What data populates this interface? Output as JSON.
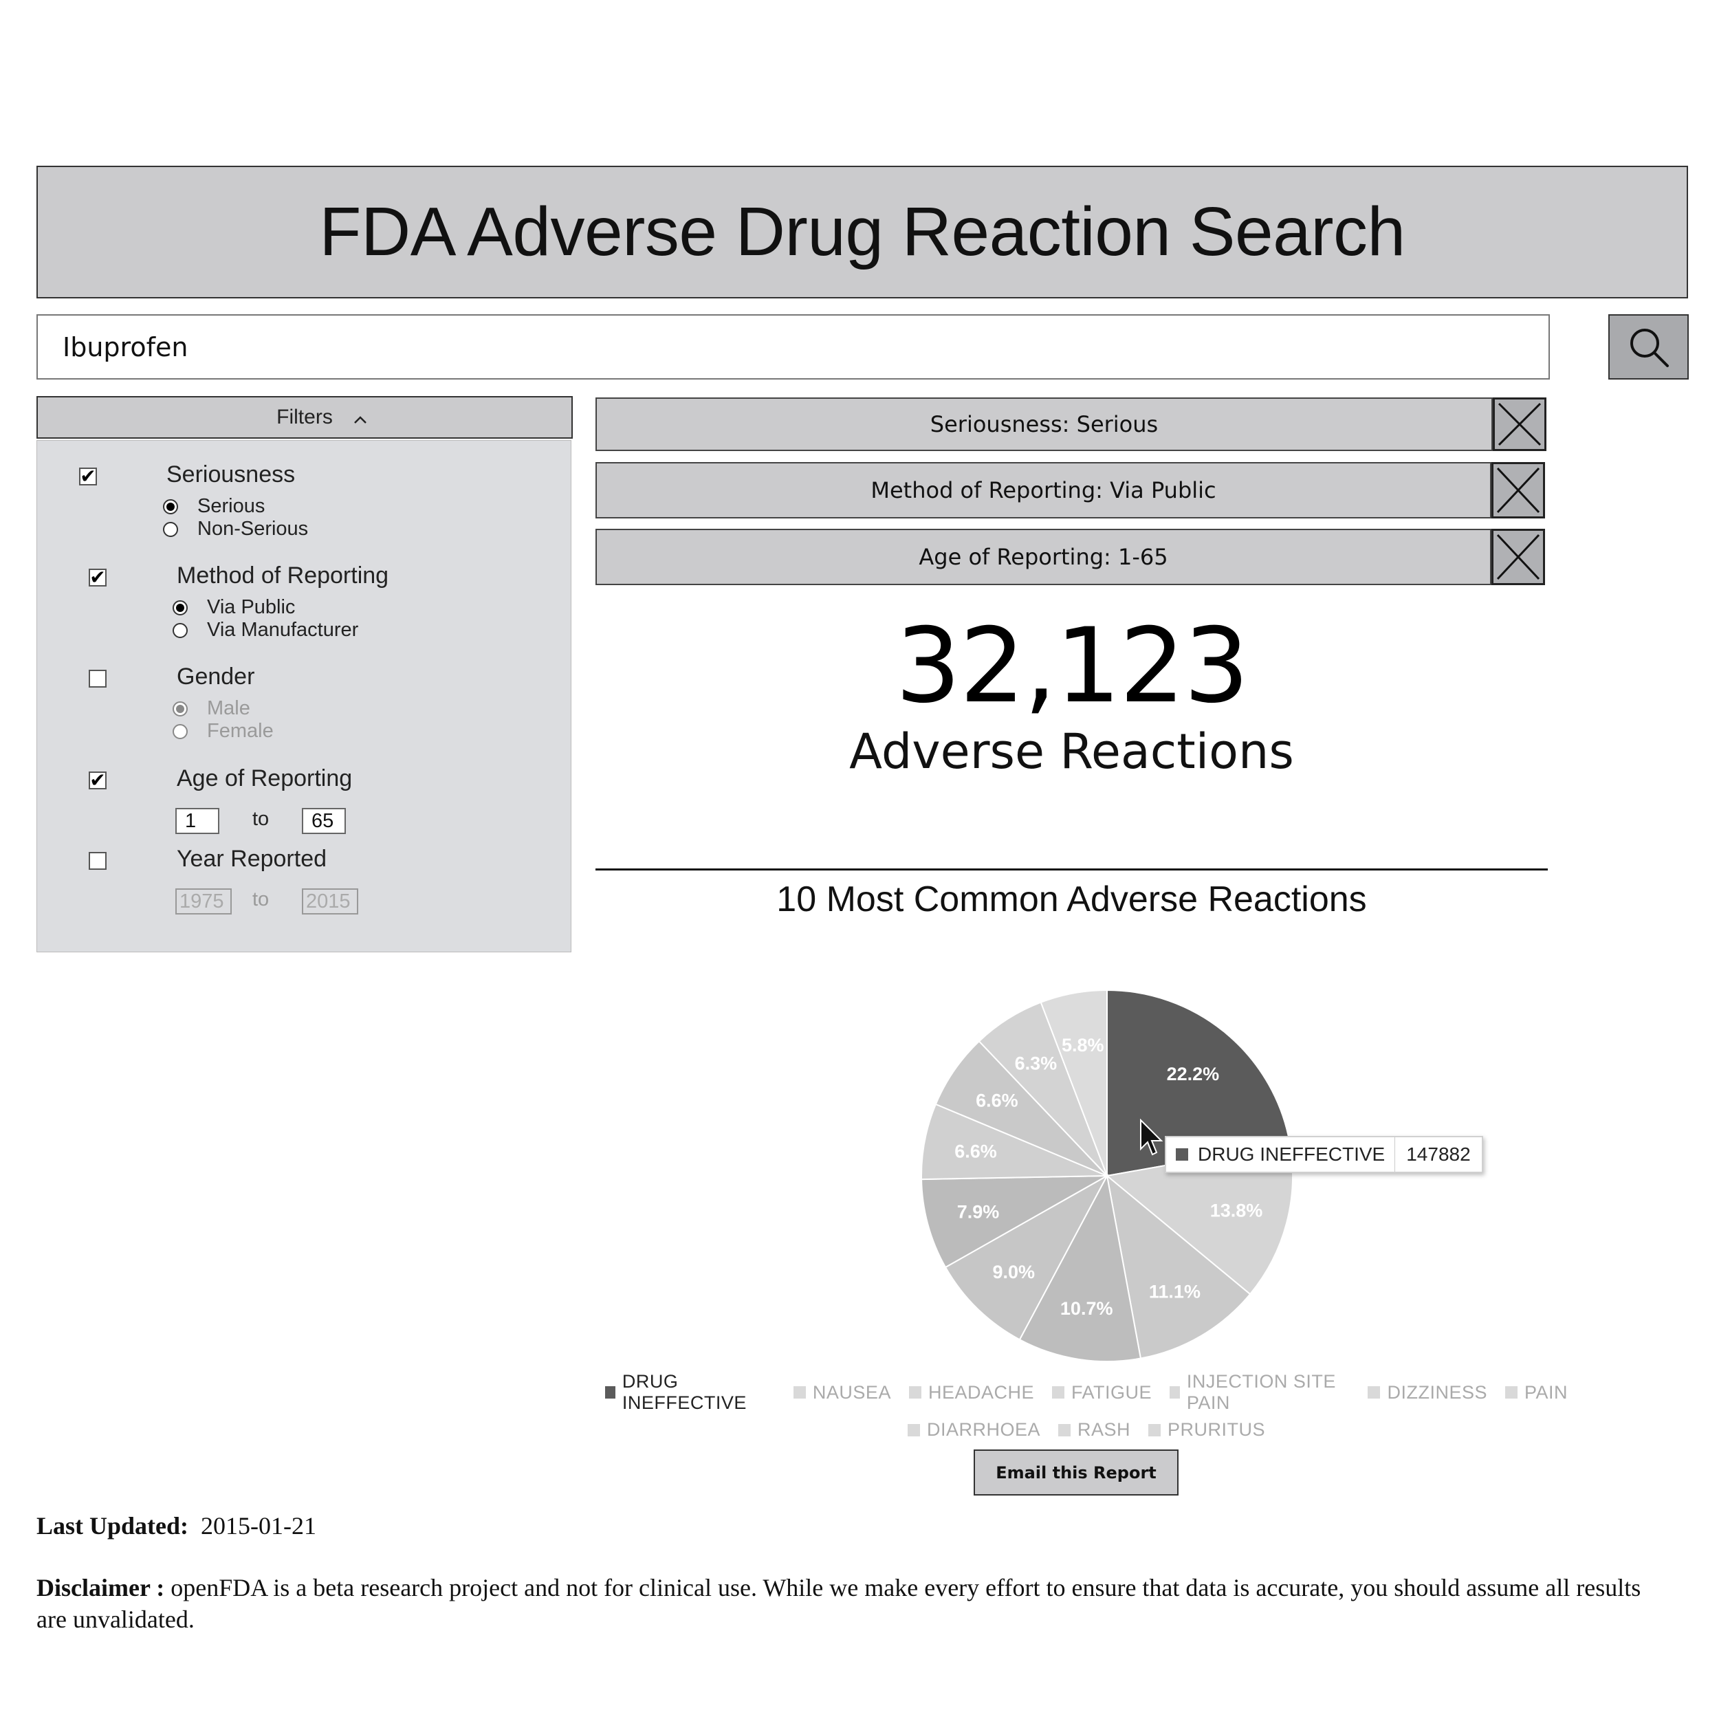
{
  "header": {
    "title": "FDA Adverse Drug Reaction Search"
  },
  "search": {
    "value": "Ibuprofen",
    "button_icon": "search-icon"
  },
  "filters": {
    "toggle_label": "Filters",
    "toggle_icon": "chevron-up-icon",
    "seriousness": {
      "title": "Seriousness",
      "checked": true,
      "options": [
        "Serious",
        "Non-Serious"
      ],
      "selected": "Serious"
    },
    "method": {
      "title": "Method of Reporting",
      "checked": true,
      "options": [
        "Via Public",
        "Via Manufacturer"
      ],
      "selected": "Via Public"
    },
    "gender": {
      "title": "Gender",
      "checked": false,
      "options": [
        "Male",
        "Female"
      ],
      "selected": "Male"
    },
    "age": {
      "title": "Age of Reporting",
      "checked": true,
      "from": "1",
      "to_word": "to",
      "to": "65"
    },
    "year": {
      "title": "Year Reported",
      "checked": false,
      "from": "1975",
      "to_word": "to",
      "to": "2015"
    }
  },
  "active_filters": [
    {
      "label": "Seriousness: Serious"
    },
    {
      "label": "Method of Reporting: Via Public"
    },
    {
      "label": "Age of Reporting: 1-65"
    }
  ],
  "summary": {
    "count": "32,123",
    "label": "Adverse Reactions"
  },
  "chart_data": {
    "type": "pie",
    "title": "10 Most Common Adverse Reactions",
    "categories": [
      "DRUG INEFFECTIVE",
      "NAUSEA",
      "HEADACHE",
      "FATIGUE",
      "INJECTION SITE PAIN",
      "DIZZINESS",
      "PAIN",
      "DIARRHOEA",
      "RASH",
      "PRURITUS"
    ],
    "values": [
      22.2,
      13.8,
      11.1,
      10.7,
      9.0,
      7.9,
      6.6,
      6.6,
      6.3,
      5.8
    ],
    "value_labels": [
      "22.2%",
      "13.8%",
      "11.1%",
      "10.7%",
      "9.0%",
      "7.9%",
      "6.6%",
      "6.6%",
      "6.3%",
      "5.8%"
    ],
    "colors": [
      "#5b5b5b",
      "#d5d5d5",
      "#cacaca",
      "#bdbdbd",
      "#c6c6c6",
      "#bbbbbb",
      "#d0d0d0",
      "#c9c9c9",
      "#d3d3d3",
      "#dcdcdc"
    ],
    "legend_placement": "bottom",
    "tooltip": {
      "label": "DRUG INEFFECTIVE",
      "value": "147882"
    }
  },
  "actions": {
    "email_label": "Email this Report"
  },
  "footer": {
    "updated_label": "Last Updated:",
    "updated_value": "2015-01-21",
    "disclaimer_label": "Disclaimer :",
    "disclaimer_text": "openFDA is a beta research project and not for clinical use. While we make every effort to ensure that data is accurate, you should assume all results are unvalidated."
  }
}
